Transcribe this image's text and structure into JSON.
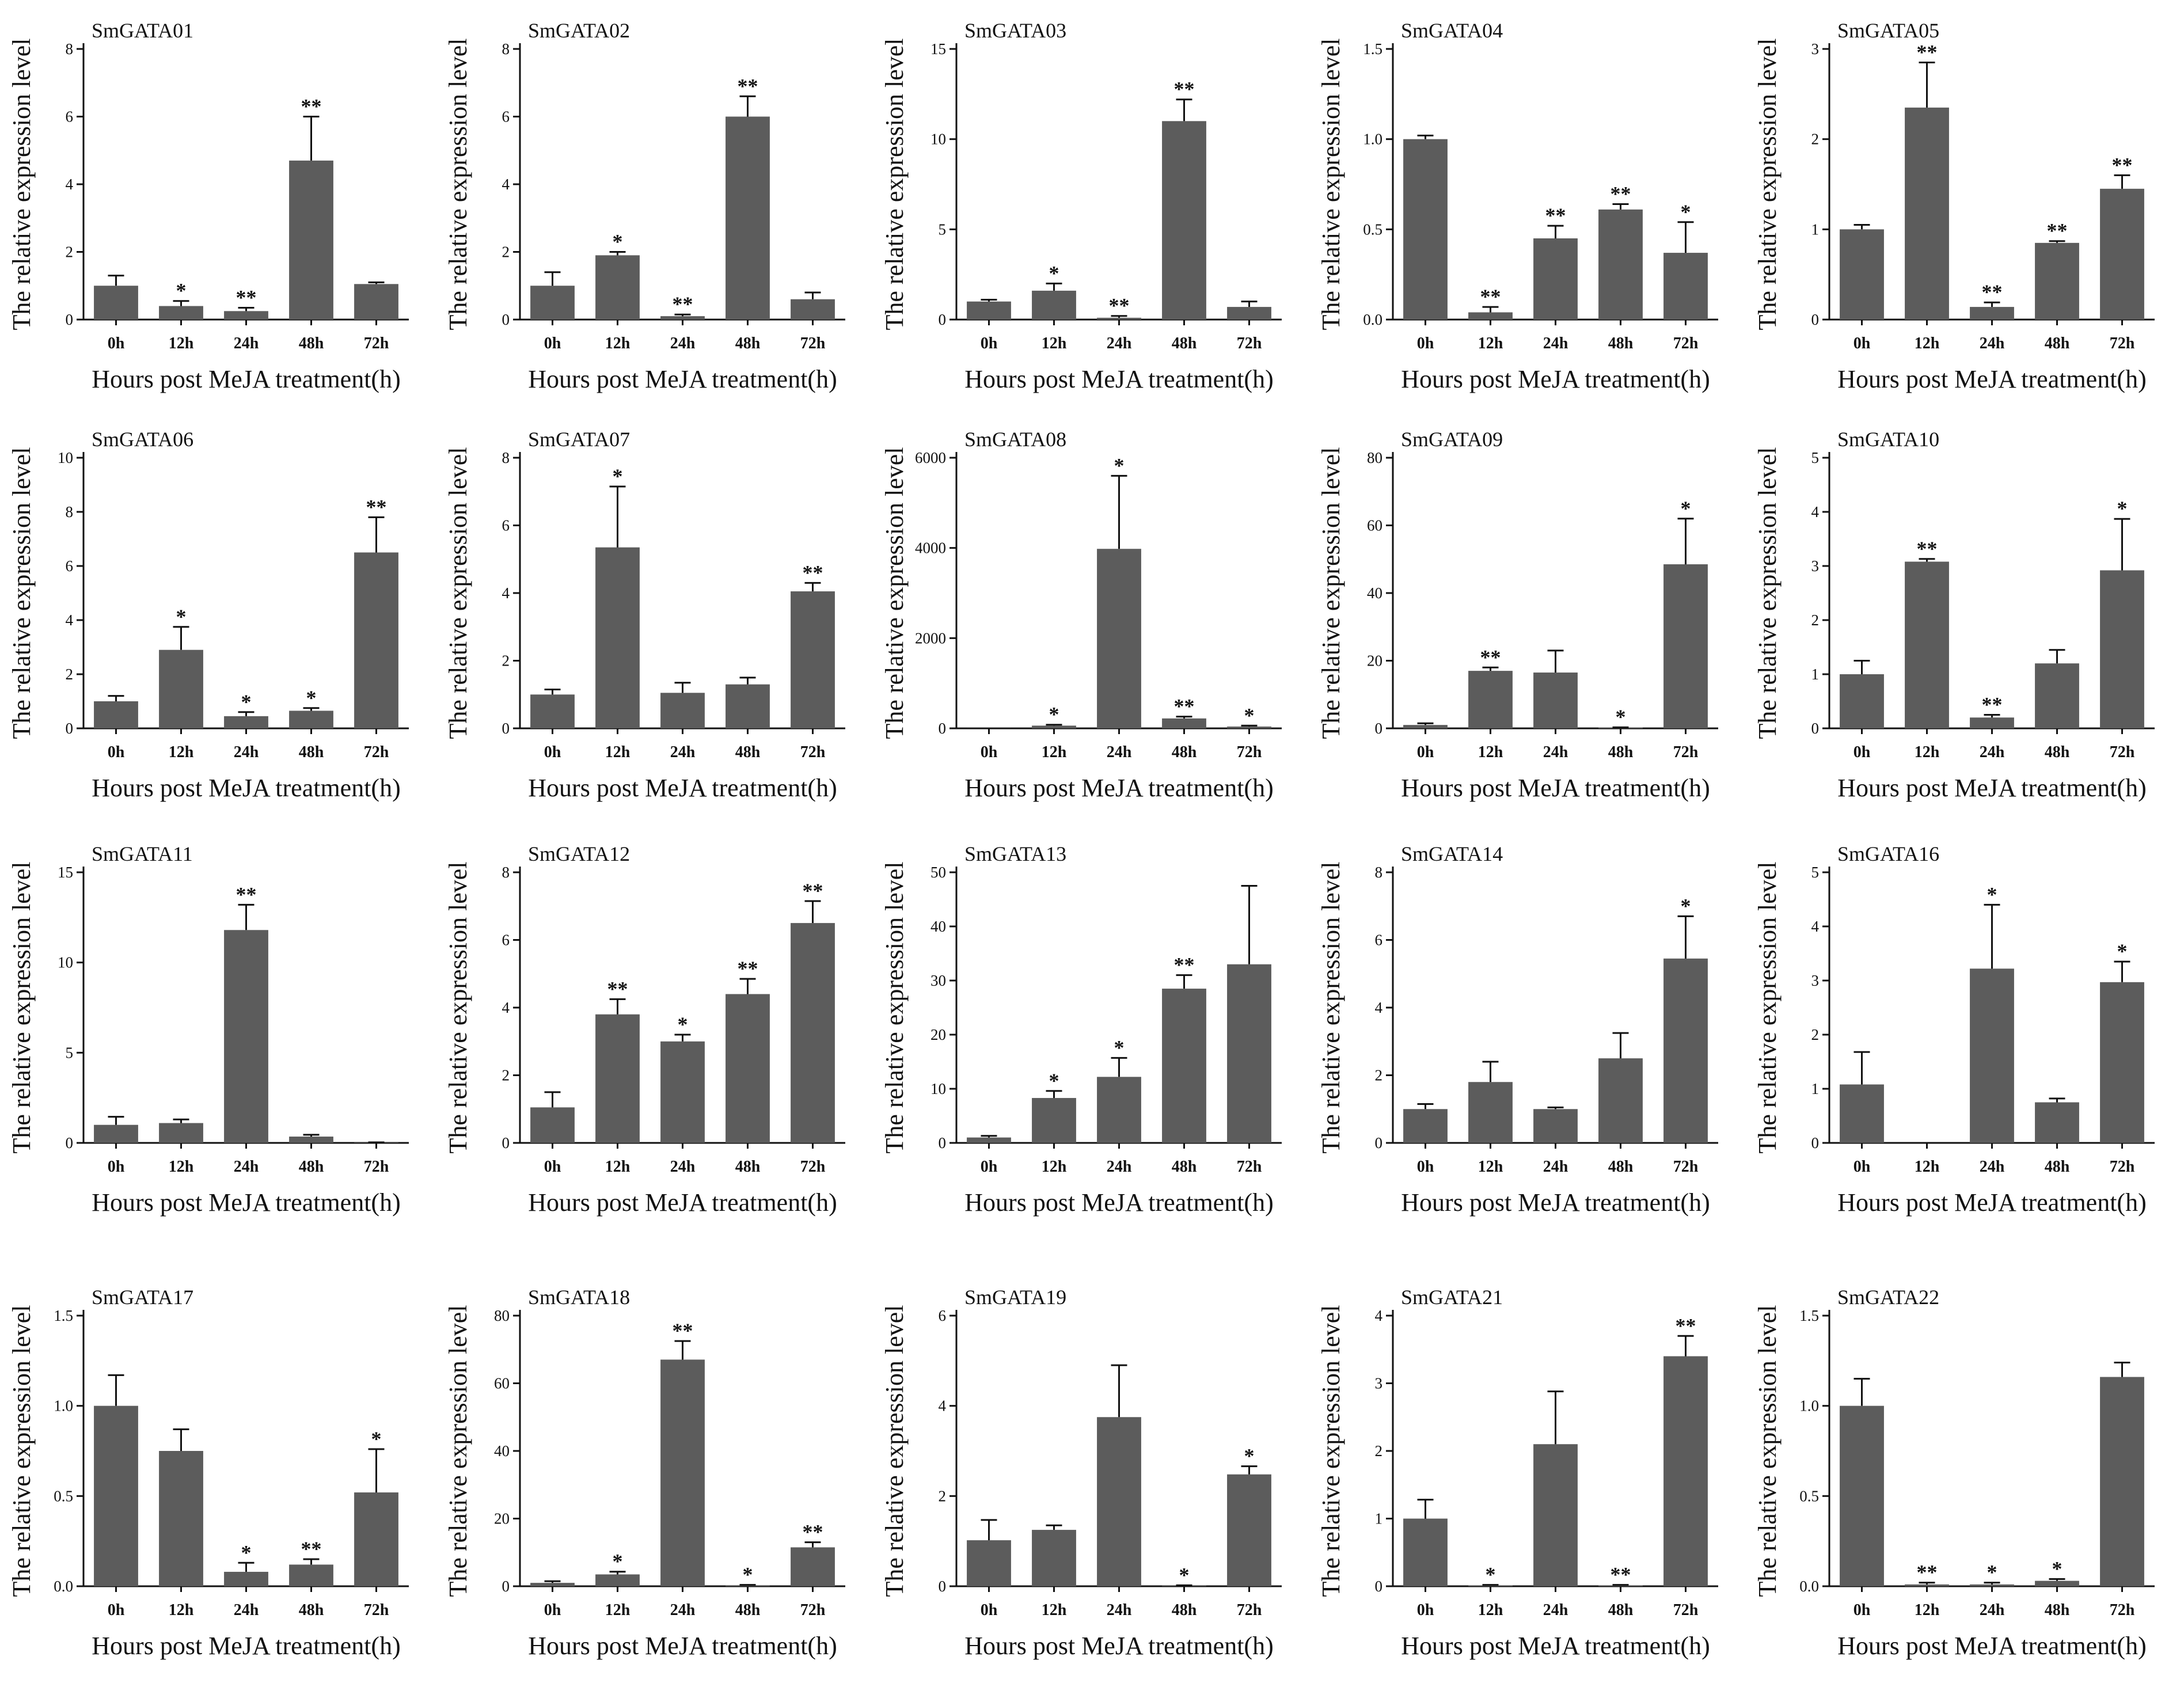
{
  "chart_data": [
    {
      "type": "bar",
      "title": "SmGATA01",
      "xlabel": "Hours post MeJA treatment(h)",
      "ylabel": "The relative expression level",
      "categories": [
        "0h",
        "12h",
        "24h",
        "48h",
        "72h"
      ],
      "values": [
        1.0,
        0.4,
        0.25,
        4.7,
        1.05
      ],
      "errors": [
        0.3,
        0.15,
        0.1,
        1.3,
        0.05
      ],
      "significance": [
        "",
        "*",
        "**",
        "**",
        ""
      ],
      "ylim": [
        0,
        8
      ],
      "yticks": [
        "0",
        "2",
        "4",
        "6",
        "8"
      ]
    },
    {
      "type": "bar",
      "title": "SmGATA02",
      "xlabel": "Hours post MeJA treatment(h)",
      "ylabel": "The relative expression level",
      "categories": [
        "0h",
        "12h",
        "24h",
        "48h",
        "72h"
      ],
      "values": [
        1.0,
        1.9,
        0.1,
        6.0,
        0.6
      ],
      "errors": [
        0.4,
        0.1,
        0.05,
        0.6,
        0.2
      ],
      "significance": [
        "",
        "*",
        "**",
        "**",
        ""
      ],
      "ylim": [
        0,
        8
      ],
      "yticks": [
        "0",
        "2",
        "4",
        "6",
        "8"
      ]
    },
    {
      "type": "bar",
      "title": "SmGATA03",
      "xlabel": "Hours post MeJA treatment(h)",
      "ylabel": "The relative expression level",
      "categories": [
        "0h",
        "12h",
        "24h",
        "48h",
        "72h"
      ],
      "values": [
        1.0,
        1.6,
        0.1,
        11.0,
        0.7
      ],
      "errors": [
        0.1,
        0.4,
        0.1,
        1.2,
        0.3
      ],
      "significance": [
        "",
        "*",
        "**",
        "**",
        ""
      ],
      "ylim": [
        0,
        15
      ],
      "yticks": [
        "0",
        "5",
        "10",
        "15"
      ]
    },
    {
      "type": "bar",
      "title": "SmGATA04",
      "xlabel": "Hours post MeJA treatment(h)",
      "ylabel": "The relative expression level",
      "categories": [
        "0h",
        "12h",
        "24h",
        "48h",
        "72h"
      ],
      "values": [
        1.0,
        0.04,
        0.45,
        0.61,
        0.37
      ],
      "errors": [
        0.02,
        0.03,
        0.07,
        0.03,
        0.17
      ],
      "significance": [
        "",
        "**",
        "**",
        "**",
        "*"
      ],
      "ylim": [
        0,
        1.5
      ],
      "yticks": [
        "0.0",
        "0.5",
        "1.0",
        "1.5"
      ]
    },
    {
      "type": "bar",
      "title": "SmGATA05",
      "xlabel": "Hours post MeJA treatment(h)",
      "ylabel": "The relative expression level",
      "categories": [
        "0h",
        "12h",
        "24h",
        "48h",
        "72h"
      ],
      "values": [
        1.0,
        2.35,
        0.14,
        0.85,
        1.45
      ],
      "errors": [
        0.05,
        0.5,
        0.05,
        0.02,
        0.15
      ],
      "significance": [
        "",
        "**",
        "**",
        "**",
        "**"
      ],
      "ylim": [
        0,
        3
      ],
      "yticks": [
        "0",
        "1",
        "2",
        "3"
      ]
    },
    {
      "type": "bar",
      "title": "SmGATA06",
      "xlabel": "Hours post MeJA treatment(h)",
      "ylabel": "The relative expression level",
      "categories": [
        "0h",
        "12h",
        "24h",
        "48h",
        "72h"
      ],
      "values": [
        1.0,
        2.9,
        0.45,
        0.65,
        6.5
      ],
      "errors": [
        0.2,
        0.85,
        0.15,
        0.1,
        1.3
      ],
      "significance": [
        "",
        "*",
        "*",
        "*",
        "**"
      ],
      "ylim": [
        0,
        10
      ],
      "yticks": [
        "0",
        "2",
        "4",
        "6",
        "8",
        "10"
      ]
    },
    {
      "type": "bar",
      "title": "SmGATA07",
      "xlabel": "Hours post MeJA treatment(h)",
      "ylabel": "The relative expression level",
      "categories": [
        "0h",
        "12h",
        "24h",
        "48h",
        "72h"
      ],
      "values": [
        1.0,
        5.35,
        1.05,
        1.3,
        4.05
      ],
      "errors": [
        0.15,
        1.8,
        0.3,
        0.2,
        0.25
      ],
      "significance": [
        "",
        "*",
        "",
        "",
        "**"
      ],
      "ylim": [
        0,
        8
      ],
      "yticks": [
        "0",
        "2",
        "4",
        "6",
        "8"
      ]
    },
    {
      "type": "bar",
      "title": "SmGATA08",
      "xlabel": "Hours post MeJA treatment(h)",
      "ylabel": "The relative expression level",
      "categories": [
        "0h",
        "12h",
        "24h",
        "48h",
        "72h"
      ],
      "values": [
        1,
        60,
        3980,
        220,
        40
      ],
      "errors": [
        0,
        20,
        1620,
        40,
        20
      ],
      "significance": [
        "",
        "*",
        "*",
        "**",
        "*"
      ],
      "ylim": [
        0,
        6000
      ],
      "yticks": [
        "0",
        "2000",
        "4000",
        "6000"
      ]
    },
    {
      "type": "bar",
      "title": "SmGATA09",
      "xlabel": "Hours post MeJA treatment(h)",
      "ylabel": "The relative expression level",
      "categories": [
        "0h",
        "12h",
        "24h",
        "48h",
        "72h"
      ],
      "values": [
        1.0,
        17.0,
        16.5,
        0.2,
        48.5
      ],
      "errors": [
        0.5,
        1.0,
        6.5,
        0.1,
        13.5
      ],
      "significance": [
        "",
        "**",
        "",
        "*",
        "*"
      ],
      "ylim": [
        0,
        80
      ],
      "yticks": [
        "0",
        "20",
        "40",
        "60",
        "80"
      ]
    },
    {
      "type": "bar",
      "title": "SmGATA10",
      "xlabel": "Hours post MeJA treatment(h)",
      "ylabel": "The relative expression level",
      "categories": [
        "0h",
        "12h",
        "24h",
        "48h",
        "72h"
      ],
      "values": [
        1.0,
        3.08,
        0.2,
        1.2,
        2.92
      ],
      "errors": [
        0.25,
        0.05,
        0.05,
        0.25,
        0.95
      ],
      "significance": [
        "",
        "**",
        "**",
        "",
        "*"
      ],
      "ylim": [
        0,
        5
      ],
      "yticks": [
        "0",
        "1",
        "2",
        "3",
        "4",
        "5"
      ]
    },
    {
      "type": "bar",
      "title": "SmGATA11",
      "xlabel": "Hours post MeJA treatment(h)",
      "ylabel": "The relative expression level",
      "categories": [
        "0h",
        "12h",
        "24h",
        "48h",
        "72h"
      ],
      "values": [
        1.0,
        1.1,
        11.8,
        0.35,
        0.02
      ],
      "errors": [
        0.45,
        0.2,
        1.4,
        0.1,
        0.01
      ],
      "significance": [
        "",
        "",
        "**",
        "",
        ""
      ],
      "ylim": [
        0,
        15
      ],
      "yticks": [
        "0",
        "5",
        "10",
        "15"
      ]
    },
    {
      "type": "bar",
      "title": "SmGATA12",
      "xlabel": "Hours post MeJA treatment(h)",
      "ylabel": "The relative expression level",
      "categories": [
        "0h",
        "12h",
        "24h",
        "48h",
        "72h"
      ],
      "values": [
        1.05,
        3.8,
        3.0,
        4.4,
        6.5
      ],
      "errors": [
        0.45,
        0.45,
        0.2,
        0.45,
        0.65
      ],
      "significance": [
        "",
        "**",
        "*",
        "**",
        "**"
      ],
      "ylim": [
        0,
        8
      ],
      "yticks": [
        "0",
        "2",
        "4",
        "6",
        "8"
      ]
    },
    {
      "type": "bar",
      "title": "SmGATA13",
      "xlabel": "Hours post MeJA treatment(h)",
      "ylabel": "The relative expression level",
      "categories": [
        "0h",
        "12h",
        "24h",
        "48h",
        "72h"
      ],
      "values": [
        1.0,
        8.3,
        12.2,
        28.5,
        33.0
      ],
      "errors": [
        0.3,
        1.3,
        3.5,
        2.5,
        14.5
      ],
      "significance": [
        "",
        "*",
        "*",
        "**",
        ""
      ],
      "ylim": [
        0,
        50
      ],
      "yticks": [
        "0",
        "10",
        "20",
        "30",
        "40",
        "50"
      ]
    },
    {
      "type": "bar",
      "title": "SmGATA14",
      "xlabel": "Hours post MeJA treatment(h)",
      "ylabel": "The relative expression level",
      "categories": [
        "0h",
        "12h",
        "24h",
        "48h",
        "72h"
      ],
      "values": [
        1.0,
        1.8,
        1.0,
        2.5,
        5.45
      ],
      "errors": [
        0.15,
        0.6,
        0.05,
        0.75,
        1.25
      ],
      "significance": [
        "",
        "",
        "",
        "",
        "*"
      ],
      "ylim": [
        0,
        8
      ],
      "yticks": [
        "0",
        "2",
        "4",
        "6",
        "8"
      ]
    },
    {
      "type": "bar",
      "title": "SmGATA16",
      "xlabel": "Hours post MeJA treatment(h)",
      "ylabel": "The relative expression level",
      "categories": [
        "0h",
        "12h",
        "24h",
        "48h",
        "72h"
      ],
      "values": [
        1.08,
        0,
        3.22,
        0.75,
        2.97
      ],
      "errors": [
        0.6,
        0,
        1.18,
        0.07,
        0.38
      ],
      "significance": [
        "",
        "",
        "*",
        "",
        "*"
      ],
      "ylim": [
        0,
        5
      ],
      "yticks": [
        "0",
        "1",
        "2",
        "3",
        "4",
        "5"
      ]
    },
    {
      "type": "bar",
      "title": "SmGATA17",
      "xlabel": "Hours post MeJA treatment(h)",
      "ylabel": "The relative expression level",
      "categories": [
        "0h",
        "12h",
        "24h",
        "48h",
        "72h"
      ],
      "values": [
        1.0,
        0.75,
        0.08,
        0.12,
        0.52
      ],
      "errors": [
        0.17,
        0.12,
        0.05,
        0.03,
        0.24
      ],
      "significance": [
        "",
        "",
        "*",
        "**",
        "*"
      ],
      "ylim": [
        0,
        1.5
      ],
      "yticks": [
        "0.0",
        "0.5",
        "1.0",
        "1.5"
      ]
    },
    {
      "type": "bar",
      "title": "SmGATA18",
      "xlabel": "Hours post MeJA treatment(h)",
      "ylabel": "The relative expression level",
      "categories": [
        "0h",
        "12h",
        "24h",
        "48h",
        "72h"
      ],
      "values": [
        1.0,
        3.5,
        67.0,
        0.3,
        11.5
      ],
      "errors": [
        0.5,
        0.8,
        5.5,
        0.1,
        1.5
      ],
      "significance": [
        "",
        "*",
        "**",
        "*",
        "**"
      ],
      "ylim": [
        0,
        80
      ],
      "yticks": [
        "0",
        "20",
        "40",
        "60",
        "80"
      ]
    },
    {
      "type": "bar",
      "title": "SmGATA19",
      "xlabel": "Hours post MeJA treatment(h)",
      "ylabel": "The relative expression level",
      "categories": [
        "0h",
        "12h",
        "24h",
        "48h",
        "72h"
      ],
      "values": [
        1.02,
        1.25,
        3.75,
        0.01,
        2.48
      ],
      "errors": [
        0.45,
        0.1,
        1.15,
        0.01,
        0.18
      ],
      "significance": [
        "",
        "",
        "",
        "*",
        "*"
      ],
      "ylim": [
        0,
        6
      ],
      "yticks": [
        "0",
        "2",
        "4",
        "6"
      ]
    },
    {
      "type": "bar",
      "title": "SmGATA21",
      "xlabel": "Hours post MeJA treatment(h)",
      "ylabel": "The relative expression level",
      "categories": [
        "0h",
        "12h",
        "24h",
        "48h",
        "72h"
      ],
      "values": [
        1.0,
        0.01,
        2.1,
        0.01,
        3.4
      ],
      "errors": [
        0.28,
        0.01,
        0.78,
        0.01,
        0.3
      ],
      "significance": [
        "",
        "*",
        "",
        "**",
        "**"
      ],
      "ylim": [
        0,
        4
      ],
      "yticks": [
        "0",
        "1",
        "2",
        "3",
        "4"
      ]
    },
    {
      "type": "bar",
      "title": "SmGATA22",
      "xlabel": "Hours post MeJA treatment(h)",
      "ylabel": "The relative expression level",
      "categories": [
        "0h",
        "12h",
        "24h",
        "48h",
        "72h"
      ],
      "values": [
        1.0,
        0.01,
        0.01,
        0.03,
        1.16
      ],
      "errors": [
        0.15,
        0.01,
        0.01,
        0.01,
        0.08
      ],
      "significance": [
        "",
        "**",
        "*",
        "*",
        ""
      ],
      "ylim": [
        0,
        1.5
      ],
      "yticks": [
        "0.0",
        "0.5",
        "1.0",
        "1.5"
      ]
    }
  ],
  "colors": {
    "bar": "#5c5c5c",
    "axis": "#111111"
  }
}
